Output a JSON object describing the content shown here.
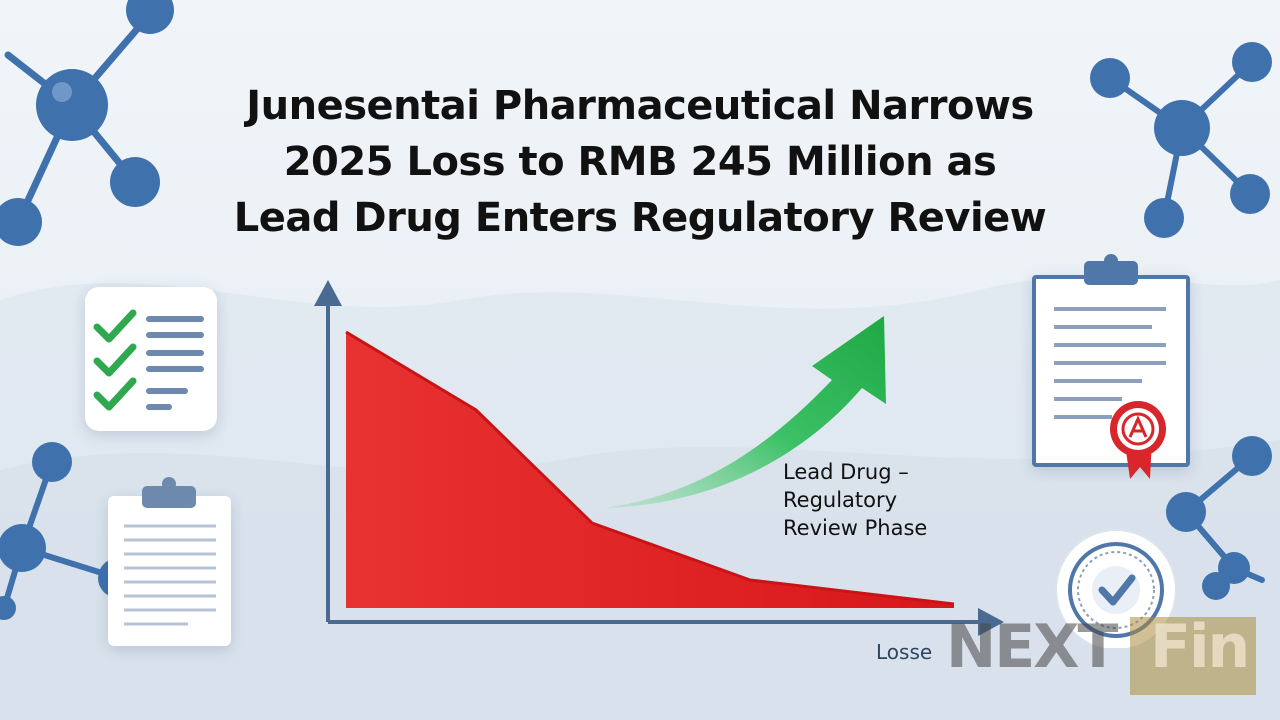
{
  "headline": {
    "line1": "Junesentai Pharmaceutical Narrows",
    "line2": "2025 Loss to RMB 245 Million as",
    "line3": "Lead Drug Enters Regulatory Review"
  },
  "callout": {
    "line1": "Lead Drug –",
    "line2": "Regulatory",
    "line3": "Review Phase"
  },
  "axis_caption": "Losse",
  "watermark": {
    "part1": "NEXT",
    "part2": "Fin"
  },
  "colors": {
    "loss_area": "#e02a2a",
    "growth_arrow": "#27b04f",
    "axis": "#4b6a92",
    "molecule": "#3f71ad",
    "check": "#2fa84f",
    "seal": "#d8262a"
  },
  "icons": [
    "molecule-icon",
    "checklist-icon",
    "clipboard-icon",
    "certificate-icon",
    "approval-badge-icon"
  ]
}
